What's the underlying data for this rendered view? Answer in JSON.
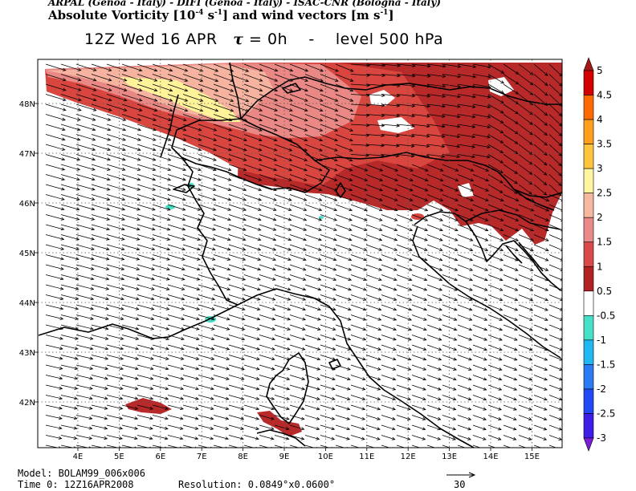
{
  "header": {
    "institutions": "ARPAL (Genoa - Italy)  -  DIFI (Genoa - Italy)  -  ISAC-CNR (Bologna - Italy)",
    "title_prefix": "Absolute Vorticity [10",
    "title_exp1": "-4",
    "title_mid": " s",
    "title_exp2": "-1",
    "title_mid2": "] and wind vectors [m s",
    "title_exp3": "-1",
    "title_end": "]",
    "time_label": "12Z Wed 16 APR",
    "tau_symbol": "τ",
    "tau_value": "= 0h",
    "separator": "-",
    "level_label": "level 500 hPa"
  },
  "axes": {
    "lat_labels": [
      "48N",
      "47N",
      "46N",
      "45N",
      "44N",
      "43N",
      "42N"
    ],
    "lon_labels": [
      "4E",
      "5E",
      "6E",
      "7E",
      "8E",
      "9E",
      "10E",
      "11E",
      "12E",
      "13E",
      "14E",
      "15E"
    ]
  },
  "colorbar": {
    "labels": [
      "5",
      "4.5",
      "4",
      "3.5",
      "3",
      "2.5",
      "2",
      "1.5",
      "1",
      "0.5",
      "-0.5",
      "-1",
      "-1.5",
      "-2",
      "-2.5",
      "-3"
    ],
    "colors": [
      "#a61818",
      "#d40000",
      "#ff6a00",
      "#ff9f1c",
      "#ffc43d",
      "#fff5a0",
      "#f7b8a0",
      "#e88a8a",
      "#d84a4a",
      "#b22222",
      "#ffffff",
      "#46e0c8",
      "#20b8f0",
      "#2a7cf5",
      "#2148f5",
      "#3d1de8",
      "#7a1cd8"
    ]
  },
  "footer": {
    "model": "Model: BOLAM99_006x006",
    "time": "Time 0: 12Z16APR2008",
    "resolution": "Resolution: 0.0849°x0.0600°",
    "ref_vector_value": "30"
  },
  "colors": {
    "wind_arrow": "#000000",
    "coast": "#000000",
    "dashed_grid": "#555555"
  }
}
